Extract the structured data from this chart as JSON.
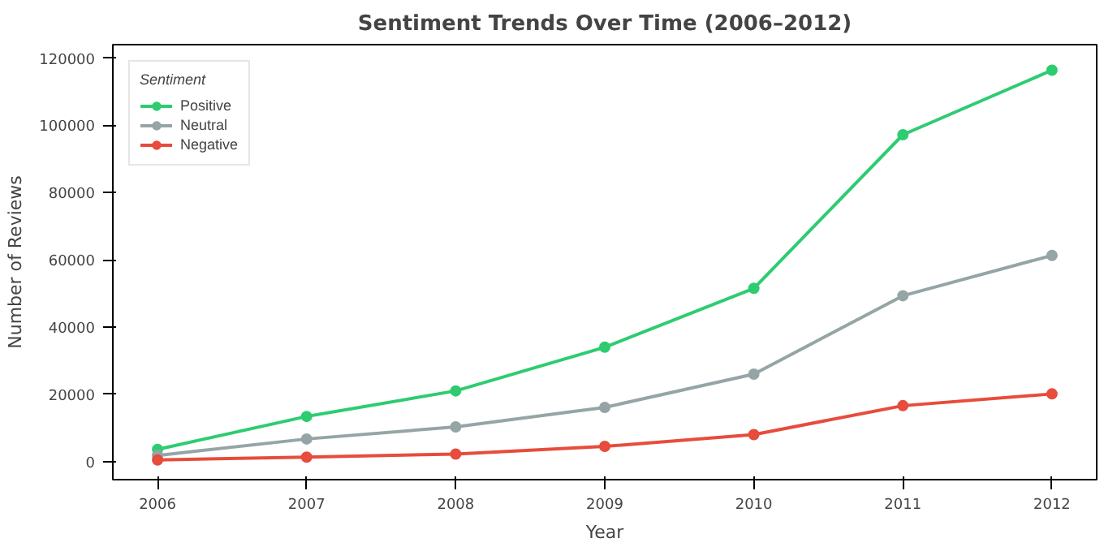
{
  "chart_data": {
    "type": "line",
    "title": "Sentiment Trends Over Time (2006–2012)",
    "xlabel": "Year",
    "ylabel": "Number of Reviews",
    "legend_title": "Sentiment",
    "x": [
      2006,
      2007,
      2008,
      2009,
      2010,
      2011,
      2012
    ],
    "series": [
      {
        "name": "Positive",
        "color": "#2ecc71",
        "values": [
          3600,
          13400,
          21000,
          34000,
          51500,
          97200,
          116400
        ]
      },
      {
        "name": "Neutral",
        "color": "#95a5a6",
        "values": [
          1800,
          6700,
          10300,
          16100,
          26000,
          49300,
          61300
        ]
      },
      {
        "name": "Negative",
        "color": "#e74c3c",
        "values": [
          450,
          1300,
          2200,
          4500,
          8000,
          16600,
          20100
        ]
      }
    ],
    "xlim": [
      2005.7,
      2012.3
    ],
    "ylim": [
      -5400,
      124000
    ],
    "xticks": [
      2006,
      2007,
      2008,
      2009,
      2010,
      2011,
      2012
    ],
    "yticks": [
      0,
      20000,
      40000,
      60000,
      80000,
      100000,
      120000
    ],
    "grid": false,
    "legend": "top left",
    "marker": "circle",
    "line_style": "solid"
  }
}
